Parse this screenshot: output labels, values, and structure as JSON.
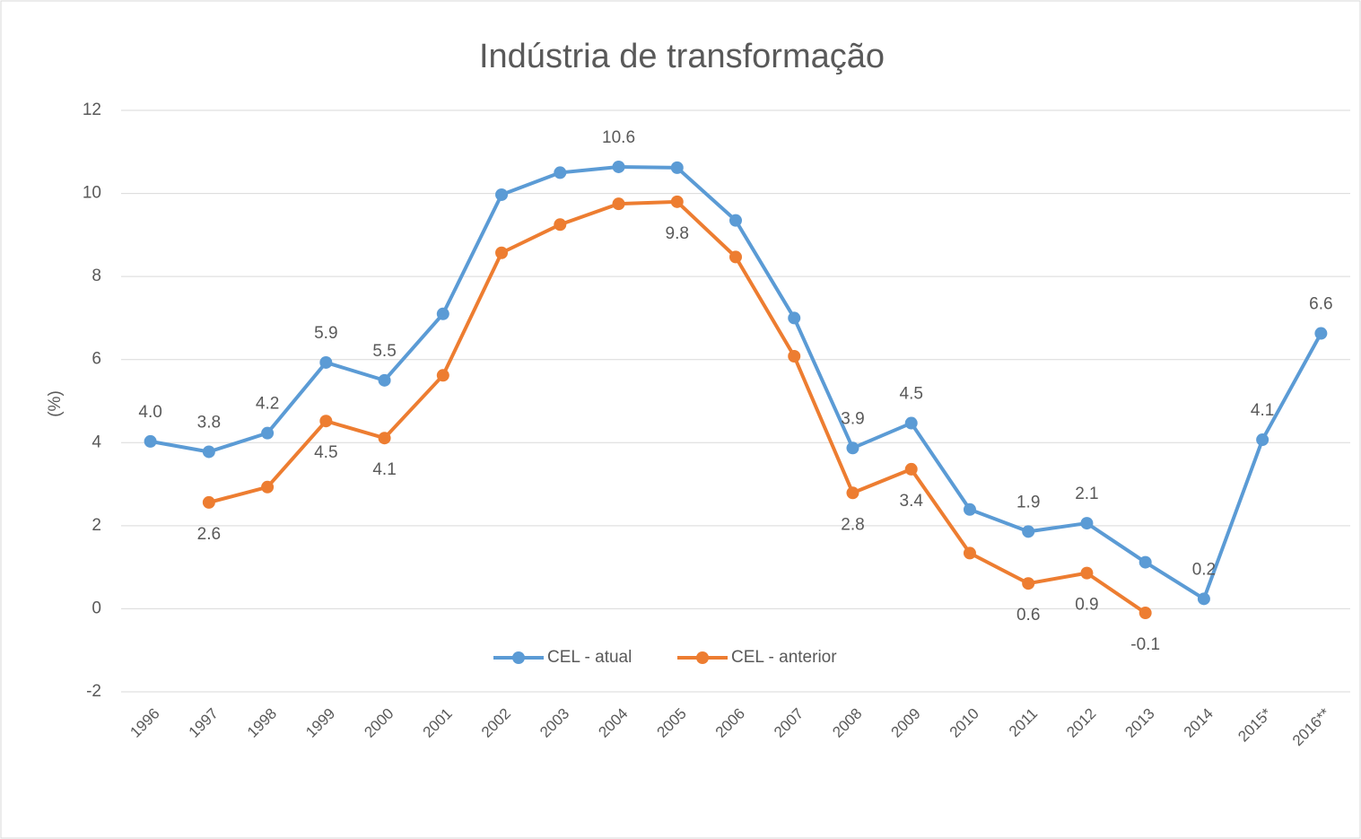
{
  "chart_data": {
    "type": "line",
    "title": "Indústria de transformação",
    "ylabel": "(%)",
    "categories": [
      "1996",
      "1997",
      "1998",
      "1999",
      "2000",
      "2001",
      "2002",
      "2003",
      "2004",
      "2005",
      "2006",
      "2007",
      "2008",
      "2009",
      "2010",
      "2011",
      "2012",
      "2013",
      "2014",
      "2015*",
      "2016**"
    ],
    "series": [
      {
        "name": "CEL - atual",
        "color": "#5b9bd5",
        "values": [
          4.03,
          3.78,
          4.23,
          5.93,
          5.5,
          7.1,
          9.97,
          10.5,
          10.64,
          10.62,
          9.35,
          7.0,
          3.87,
          4.47,
          2.39,
          1.86,
          2.06,
          1.12,
          0.24,
          4.07,
          6.63
        ],
        "value_labels": [
          "4.0",
          "3.8",
          "4.2",
          "5.9",
          "5.5",
          null,
          null,
          null,
          "10.6",
          null,
          null,
          null,
          "3.9",
          "4.5",
          null,
          "1.9",
          "2.1",
          null,
          "0.2",
          "4.1",
          "6.6"
        ]
      },
      {
        "name": "CEL - anterior",
        "color": "#ed7d31",
        "values": [
          null,
          2.56,
          2.93,
          4.52,
          4.11,
          5.62,
          8.57,
          9.25,
          9.75,
          9.8,
          8.47,
          6.08,
          2.79,
          3.36,
          1.34,
          0.61,
          0.86,
          -0.1,
          null,
          null,
          null
        ],
        "value_labels": [
          null,
          "2.6",
          null,
          "4.5",
          "4.1",
          null,
          null,
          null,
          null,
          "9.8",
          null,
          null,
          "2.8",
          "3.4",
          null,
          "0.6",
          "0.9",
          "-0.1",
          null,
          null,
          null
        ]
      }
    ],
    "ylim": [
      -2,
      12
    ],
    "yticks": [
      -2,
      0,
      2,
      4,
      6,
      8,
      10,
      12
    ],
    "grid": true,
    "legend": "bottom"
  }
}
